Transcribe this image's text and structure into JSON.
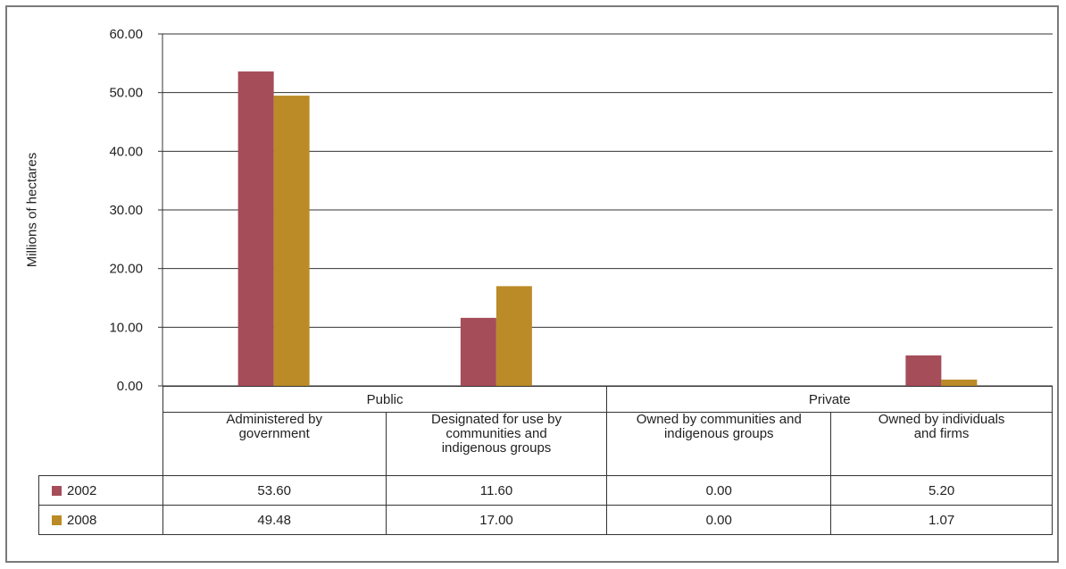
{
  "chart_data": {
    "type": "bar",
    "ylabel": "Millions of hectares",
    "ylim": [
      0,
      60
    ],
    "yticks": [
      "0.00",
      "10.00",
      "20.00",
      "30.00",
      "40.00",
      "50.00",
      "60.00"
    ],
    "grid": true,
    "groups": [
      {
        "label": "Public",
        "span": 2
      },
      {
        "label": "Private",
        "span": 2
      }
    ],
    "categories": [
      "Administered by government",
      "Designated for use by communities and indigenous groups",
      "Owned by communities and indigenous groups",
      "Owned by individuals and firms"
    ],
    "series": [
      {
        "name": "2002",
        "color": "#a54d59",
        "values": [
          53.6,
          11.6,
          0.0,
          5.2
        ],
        "labels": [
          "53.60",
          "11.60",
          "0.00",
          "5.20"
        ]
      },
      {
        "name": "2008",
        "color": "#bb8b27",
        "values": [
          49.48,
          17.0,
          0.0,
          1.07
        ],
        "labels": [
          "49.48",
          "17.00",
          "0.00",
          "1.07"
        ]
      }
    ],
    "legend": "table-left"
  }
}
